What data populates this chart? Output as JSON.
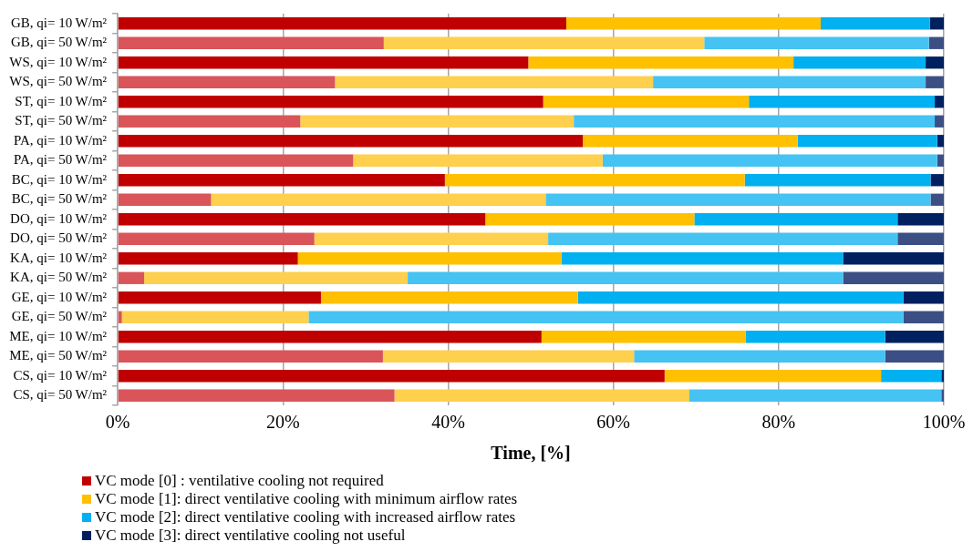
{
  "chart_data": {
    "type": "bar",
    "orientation": "horizontal",
    "stacked": true,
    "xlabel": "Time, [%]",
    "categories": [
      "GB, qi= 10 W/m²",
      "GB, qi= 50 W/m²",
      "WS, qi= 10 W/m²",
      "WS, qi= 50 W/m²",
      "ST, qi= 10 W/m²",
      "ST, qi= 50 W/m²",
      "PA, qi= 10 W/m²",
      "PA, qi= 50 W/m²",
      "BC, qi= 10 W/m²",
      "BC, qi= 50 W/m²",
      "DO, qi= 10 W/m²",
      "DO, qi= 50 W/m²",
      "KA, qi= 10 W/m²",
      "KA, qi= 50 W/m²",
      "GE, qi= 10 W/m²",
      "GE, qi= 50 W/m²",
      "ME, qi= 10 W/m²",
      "ME, qi= 50 W/m²",
      "CS, qi= 10 W/m²",
      "CS, qi= 50 W/m²"
    ],
    "series": [
      {
        "name": "VC mode [0] : ventilative cooling not required",
        "color": "#c00000",
        "colors": [
          "#c00000",
          "#d9555a",
          "#c00000",
          "#d9555a",
          "#c00000",
          "#d9555a",
          "#c00000",
          "#d9555a",
          "#c00000",
          "#d9555a",
          "#c00000",
          "#d9555a",
          "#c00000",
          "#d9555a",
          "#c00000",
          "#d9555a",
          "#c00000",
          "#d9555a",
          "#c00000",
          "#d9555a"
        ],
        "values": [
          54.3,
          32.2,
          49.7,
          26.3,
          51.5,
          22.1,
          56.3,
          28.5,
          39.6,
          11.3,
          44.5,
          23.8,
          21.8,
          3.2,
          24.6,
          0.5,
          51.3,
          32.1,
          66.2,
          33.5
        ]
      },
      {
        "name": "VC mode [1]: direct ventilative cooling with minimum airflow rates",
        "color": "#ffc000",
        "colors": [
          "#ffc000",
          "#ffd04d",
          "#ffc000",
          "#ffd04d",
          "#ffc000",
          "#ffd04d",
          "#ffc000",
          "#ffd04d",
          "#ffc000",
          "#ffd04d",
          "#ffc000",
          "#ffd04d",
          "#ffc000",
          "#ffd04d",
          "#ffc000",
          "#ffd04d",
          "#ffc000",
          "#ffd04d",
          "#ffc000",
          "#ffd04d"
        ],
        "values": [
          30.8,
          38.8,
          32.1,
          38.5,
          24.9,
          33.1,
          26.0,
          30.2,
          36.3,
          40.5,
          25.3,
          28.3,
          31.9,
          31.9,
          31.1,
          22.6,
          24.7,
          30.4,
          26.2,
          35.7
        ]
      },
      {
        "name": "VC mode [2]: direct ventilative cooling with increased airflow rates",
        "color": "#00b0f0",
        "colors": [
          "#00b0f0",
          "#45c3f2",
          "#00b0f0",
          "#45c3f2",
          "#00b0f0",
          "#45c3f2",
          "#00b0f0",
          "#45c3f2",
          "#00b0f0",
          "#45c3f2",
          "#00b0f0",
          "#45c3f2",
          "#00b0f0",
          "#45c3f2",
          "#00b0f0",
          "#45c3f2",
          "#00b0f0",
          "#45c3f2",
          "#00b0f0",
          "#45c3f2"
        ],
        "values": [
          13.2,
          27.2,
          16.0,
          33.0,
          22.5,
          43.7,
          16.9,
          40.5,
          22.5,
          46.6,
          24.6,
          42.3,
          34.1,
          52.7,
          39.4,
          72.0,
          16.9,
          30.4,
          7.3,
          30.5
        ]
      },
      {
        "name": "VC mode [3]: direct ventilative cooling not useful",
        "color": "#002060",
        "colors": [
          "#002060",
          "#3c4f85",
          "#002060",
          "#3c4f85",
          "#002060",
          "#3c4f85",
          "#002060",
          "#3c4f85",
          "#002060",
          "#3c4f85",
          "#002060",
          "#3c4f85",
          "#002060",
          "#3c4f85",
          "#002060",
          "#3c4f85",
          "#002060",
          "#3c4f85",
          "#002060",
          "#3c4f85"
        ],
        "values": [
          1.7,
          1.8,
          2.2,
          2.2,
          1.1,
          1.1,
          0.8,
          0.8,
          1.6,
          1.6,
          5.6,
          5.6,
          12.2,
          12.2,
          4.9,
          4.9,
          7.1,
          7.1,
          0.3,
          0.3
        ]
      }
    ],
    "xlim": [
      0,
      100
    ],
    "xticks": [
      {
        "value": 0,
        "label": "0%"
      },
      {
        "value": 20,
        "label": "20%"
      },
      {
        "value": 40,
        "label": "40%"
      },
      {
        "value": 60,
        "label": "60%"
      },
      {
        "value": 80,
        "label": "80%"
      },
      {
        "value": 100,
        "label": "100%"
      }
    ],
    "grid": "x",
    "legend": "bottom"
  }
}
